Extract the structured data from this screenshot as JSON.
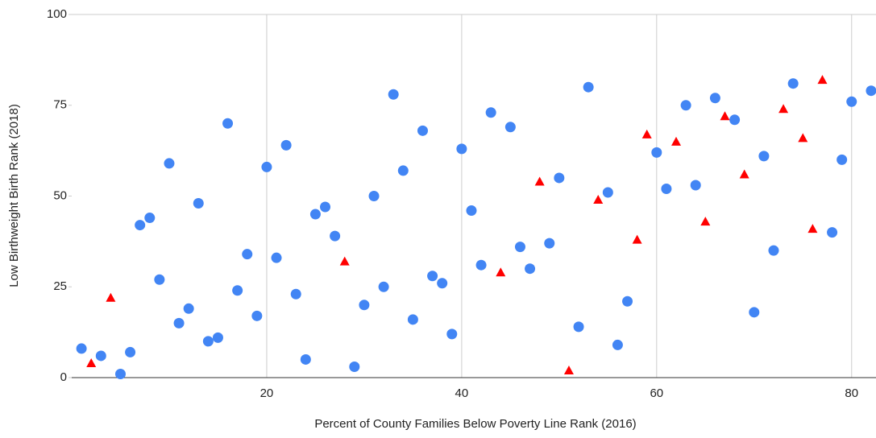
{
  "chart_data": {
    "type": "scatter",
    "x_label": "Percent of County Families Below Poverty Line Rank (2016)",
    "y_label": "Low Birthweight Birth Rank (2018)",
    "xlim": [
      0,
      82.5
    ],
    "ylim": [
      0,
      100
    ],
    "xticks": [
      20,
      40,
      60,
      80
    ],
    "yticks": [
      0,
      25,
      50,
      75,
      100
    ],
    "grid": {
      "x": true,
      "y": false
    },
    "series": [
      {
        "color": "#4285f4",
        "marker": "circle",
        "x": [
          1,
          3,
          5,
          6,
          7,
          8,
          9,
          10,
          11,
          12,
          13,
          14,
          15,
          16,
          17,
          18,
          19,
          20,
          21,
          22,
          23,
          24,
          25,
          26,
          27,
          29,
          30,
          31,
          32,
          33,
          34,
          35,
          36,
          37,
          38,
          39,
          40,
          41,
          42,
          43,
          45,
          46,
          47,
          49,
          50,
          52,
          53,
          55,
          56,
          57,
          60,
          61,
          63,
          64,
          66,
          68,
          70,
          71,
          72,
          74,
          78,
          79,
          80,
          82
        ],
        "values": [
          8,
          6,
          1,
          7,
          42,
          44,
          27,
          59,
          15,
          19,
          48,
          10,
          11,
          70,
          24,
          34,
          17,
          58,
          33,
          64,
          23,
          5,
          45,
          47,
          39,
          3,
          20,
          50,
          25,
          78,
          57,
          16,
          68,
          28,
          26,
          12,
          63,
          46,
          31,
          73,
          69,
          36,
          30,
          37,
          55,
          14,
          80,
          51,
          9,
          21,
          62,
          52,
          75,
          53,
          77,
          71,
          18,
          61,
          35,
          81,
          40,
          60,
          76,
          79
        ]
      },
      {
        "color": "#ff0000",
        "marker": "triangle",
        "x": [
          2,
          4,
          28,
          44,
          48,
          51,
          54,
          58,
          59,
          62,
          65,
          67,
          69,
          73,
          75,
          76,
          77
        ],
        "values": [
          4,
          22,
          32,
          29,
          54,
          2,
          49,
          38,
          67,
          65,
          43,
          72,
          56,
          74,
          66,
          41,
          82
        ]
      }
    ]
  }
}
